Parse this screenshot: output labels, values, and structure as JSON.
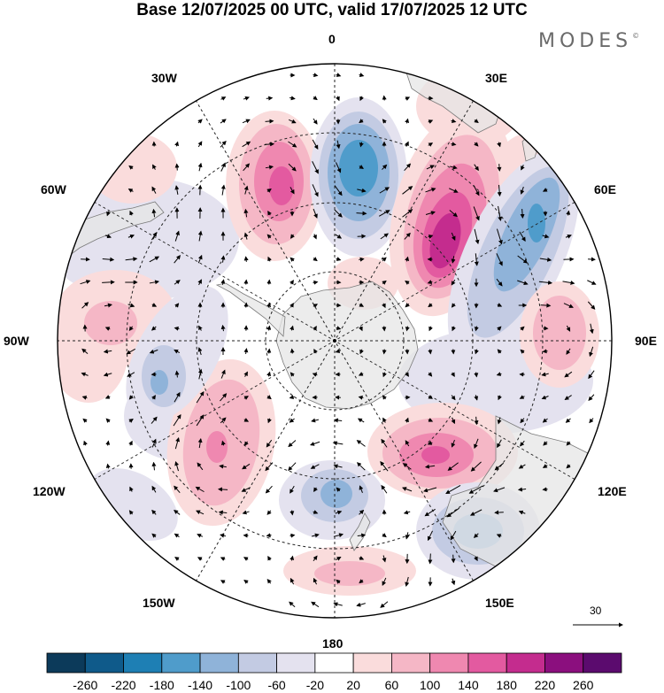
{
  "title": "Base 12/07/2025 00 UTC, valid 17/07/2025 12 UTC",
  "brand": "MODES",
  "brand_mark": "©",
  "lon_labels": {
    "l0": "0",
    "l30e": "30E",
    "l60e": "60E",
    "l90e": "90E",
    "l120e": "120E",
    "l150e": "150E",
    "l180": "180",
    "l150w": "150W",
    "l120w": "120W",
    "l90w": "90W",
    "l60w": "60W",
    "l30w": "30W"
  },
  "vector_scale": "30",
  "colorbar": {
    "labels": [
      "-260",
      "-220",
      "-180",
      "-140",
      "-100",
      "-60",
      "-20",
      "20",
      "60",
      "100",
      "140",
      "180",
      "220",
      "260"
    ],
    "colors": [
      "#0c3a5a",
      "#0f5a8a",
      "#1e7fb4",
      "#4f9ccb",
      "#8fb3d9",
      "#c3cbe3",
      "#e4e2ef",
      "#ffffff",
      "#fadcdc",
      "#f5b7c6",
      "#ef88b0",
      "#e35aa0",
      "#c42c8e",
      "#8b0f7e",
      "#5b0b6e"
    ]
  },
  "anomalies": [
    {
      "sign": "+",
      "level": 3,
      "name": "anomaly-high-atlantic"
    },
    {
      "sign": "-",
      "level": 3,
      "name": "anomaly-low-south-atlantic"
    },
    {
      "sign": "+",
      "level": 5,
      "name": "anomaly-high-indian"
    },
    {
      "sign": "-",
      "level": 2,
      "name": "anomaly-low-indian"
    },
    {
      "sign": "+",
      "level": 2,
      "name": "anomaly-high-ross"
    },
    {
      "sign": "+",
      "level": 3,
      "name": "anomaly-high-australia"
    },
    {
      "sign": "-",
      "level": 2,
      "name": "anomaly-low-tasman"
    },
    {
      "sign": "+",
      "level": 2,
      "name": "anomaly-high-pacific"
    },
    {
      "sign": "-",
      "level": 2,
      "name": "anomaly-low-amundsen"
    },
    {
      "sign": "+",
      "level": 1,
      "name": "anomaly-high-east-pacific"
    },
    {
      "sign": "-",
      "level": 2,
      "name": "anomaly-low-new-zealand"
    },
    {
      "sign": "+",
      "level": 1,
      "name": "anomaly-high-far-pacific"
    }
  ]
}
